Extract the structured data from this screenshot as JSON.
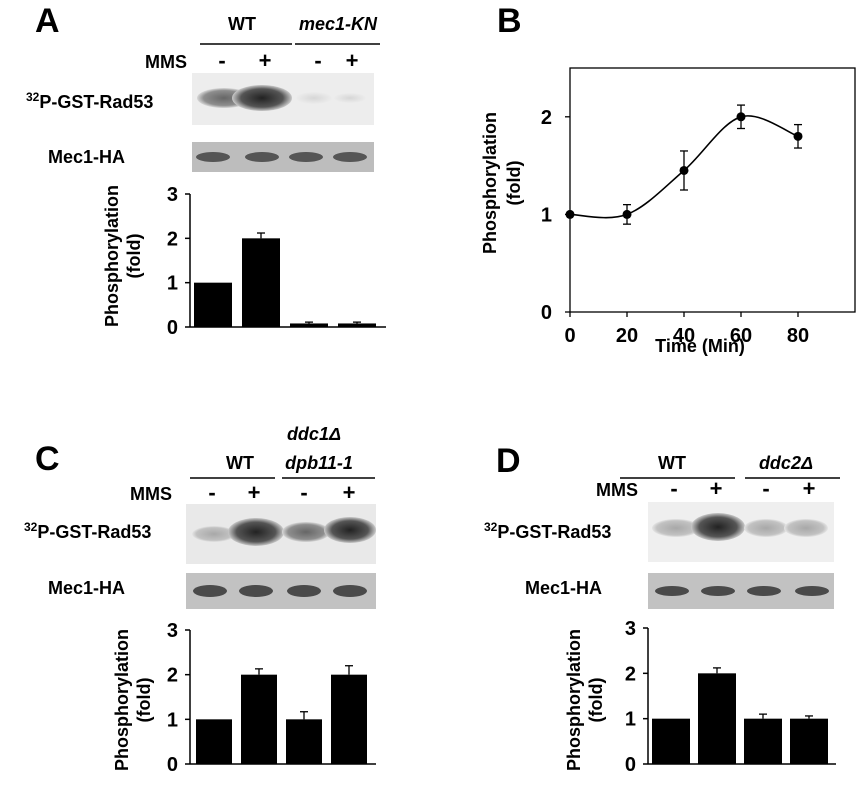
{
  "figure": {
    "panels": {
      "A": {
        "letter": "A",
        "groups": [
          "WT",
          "mec1-KN"
        ],
        "mms_label": "MMS",
        "mms_states": [
          "-",
          "+",
          "-",
          "+"
        ],
        "blot1_label_sup": "32",
        "blot1_label": "P-GST-Rad53",
        "blot2_label": "Mec1-HA",
        "ylabel": [
          "Phosphorylation",
          "(fold)"
        ]
      },
      "B": {
        "letter": "B",
        "xlabel": "Time (Min)",
        "ylabel": [
          "Phosphorylation",
          "(fold)"
        ]
      },
      "C": {
        "letter": "C",
        "groups": [
          "WT",
          "ddc1Δ",
          "dpb11-1"
        ],
        "mms_label": "MMS",
        "mms_states": [
          "-",
          "+",
          "-",
          "+"
        ],
        "blot1_label_sup": "32",
        "blot1_label": "P-GST-Rad53",
        "blot2_label": "Mec1-HA",
        "ylabel": [
          "Phosphorylation",
          "(fold)"
        ]
      },
      "D": {
        "letter": "D",
        "groups": [
          "WT",
          "ddc2Δ"
        ],
        "mms_label": "MMS",
        "mms_states": [
          "-",
          "+",
          "-",
          "+"
        ],
        "blot1_label_sup": "32",
        "blot1_label": "P-GST-Rad53",
        "blot2_label": "Mec1-HA",
        "ylabel": [
          "Phosphorylation",
          "(fold)"
        ]
      }
    }
  },
  "chart_data": [
    {
      "panel": "A",
      "type": "bar",
      "categories": [
        "WT -",
        "WT +",
        "mec1-KN -",
        "mec1-KN +"
      ],
      "values": [
        1.0,
        2.0,
        0.08,
        0.08
      ],
      "errors": [
        0,
        0.12,
        0.03,
        0.03
      ],
      "ylim": [
        0,
        3
      ],
      "yticks": [
        "0",
        "1",
        "2",
        "3"
      ],
      "bar_color": "#000000"
    },
    {
      "panel": "B",
      "type": "line",
      "x": [
        0,
        20,
        40,
        60,
        80
      ],
      "y": [
        1.0,
        1.0,
        1.45,
        2.0,
        1.8
      ],
      "errors": [
        0,
        0.1,
        0.2,
        0.12,
        0.12
      ],
      "xlim": [
        0,
        100
      ],
      "ylim": [
        0,
        2.5
      ],
      "xticks": [
        "0",
        "20",
        "40",
        "60",
        "80"
      ],
      "yticks": [
        "0",
        "1",
        "2"
      ],
      "smooth": true
    },
    {
      "panel": "C",
      "type": "bar",
      "categories": [
        "WT -",
        "WT +",
        "ddc1Δ dpb11-1 -",
        "ddc1Δ dpb11-1 +"
      ],
      "values": [
        1.0,
        2.0,
        1.0,
        2.0
      ],
      "errors": [
        0,
        0.13,
        0.17,
        0.2
      ],
      "ylim": [
        0,
        3
      ],
      "yticks": [
        "0",
        "1",
        "2",
        "3"
      ],
      "bar_color": "#000000"
    },
    {
      "panel": "D",
      "type": "bar",
      "categories": [
        "WT -",
        "WT +",
        "ddc2Δ -",
        "ddc2Δ +"
      ],
      "values": [
        1.0,
        2.0,
        1.0,
        1.0
      ],
      "errors": [
        0,
        0.12,
        0.1,
        0.06
      ],
      "ylim": [
        0,
        3
      ],
      "yticks": [
        "0",
        "1",
        "2",
        "3"
      ],
      "bar_color": "#000000"
    }
  ]
}
